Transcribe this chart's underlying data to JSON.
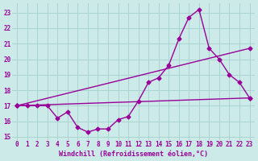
{
  "title": "",
  "xlabel": "Windchill (Refroidissement éolien,°C)",
  "ylabel": "",
  "xlim": [
    -0.5,
    23.5
  ],
  "ylim": [
    14.8,
    23.6
  ],
  "yticks": [
    15,
    16,
    17,
    18,
    19,
    20,
    21,
    22,
    23
  ],
  "xticks": [
    0,
    1,
    2,
    3,
    4,
    5,
    6,
    7,
    8,
    9,
    10,
    11,
    12,
    13,
    14,
    15,
    16,
    17,
    18,
    19,
    20,
    21,
    22,
    23
  ],
  "bg_color": "#cceae7",
  "grid_color": "#aad4d0",
  "line_color": "#990099",
  "line1_x": [
    0,
    1,
    2,
    3,
    4,
    5,
    6,
    7,
    8,
    9,
    10,
    11,
    12,
    13,
    14,
    15,
    16,
    17,
    18,
    19,
    20,
    21,
    22,
    23
  ],
  "line1_y": [
    17.0,
    17.0,
    17.0,
    17.0,
    16.2,
    16.6,
    15.6,
    15.3,
    15.5,
    15.5,
    16.1,
    16.3,
    17.3,
    18.5,
    18.8,
    19.6,
    21.3,
    22.7,
    23.2,
    20.7,
    20.0,
    19.0,
    18.5,
    17.5
  ],
  "line2_x": [
    0,
    23
  ],
  "line2_y": [
    17.0,
    17.5
  ],
  "line3_x": [
    0,
    23
  ],
  "line3_y": [
    17.0,
    20.7
  ],
  "marker": "D",
  "markersize": 2.5,
  "linewidth": 1.0
}
